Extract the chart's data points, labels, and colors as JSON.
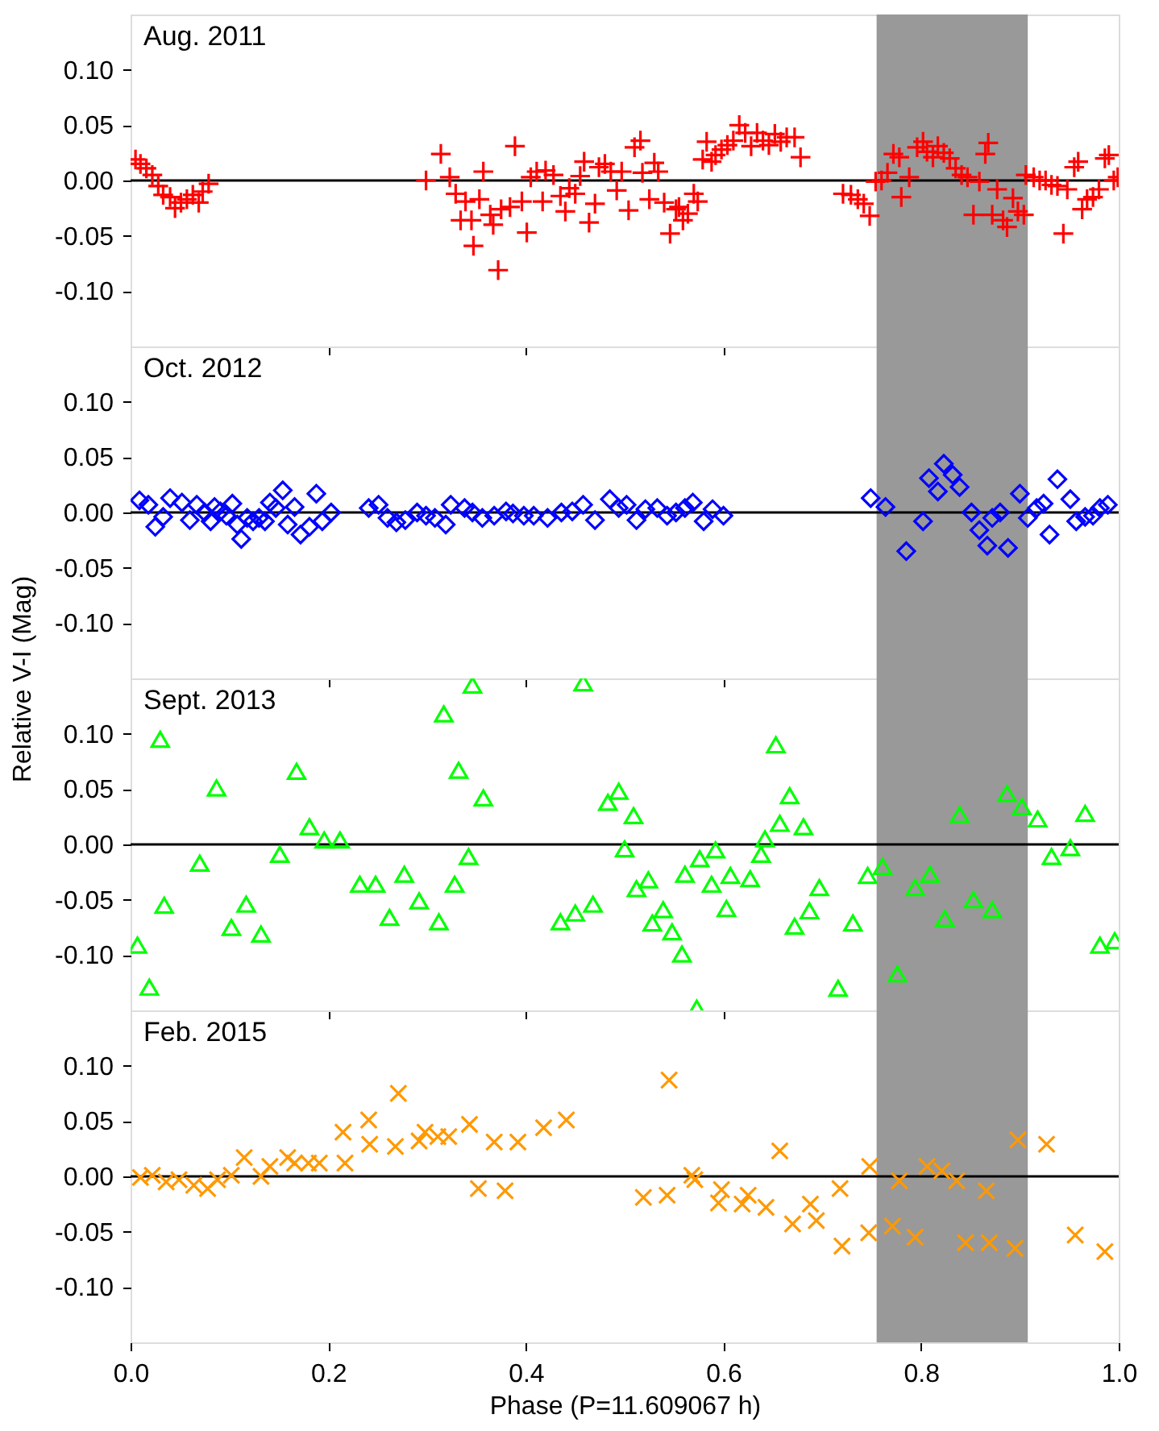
{
  "chart_data": [
    {
      "type": "scatter",
      "title": "Aug.  2011",
      "marker": "cross",
      "tick_labels": "y",
      "grid": false,
      "xlim": [
        0,
        1
      ],
      "xticks": [
        0.0,
        0.2,
        0.4,
        0.6,
        0.8,
        1.0
      ],
      "ylim": [
        -0.15,
        0.15
      ],
      "yticks": [
        {
          "value": -0.1,
          "label": "-0.10"
        },
        {
          "value": -0.05,
          "label": "-0.05"
        },
        {
          "value": 0,
          "label": "0.00"
        },
        {
          "value": 0.05,
          "label": "0.05"
        },
        {
          "value": 0.1,
          "label": "0.10"
        }
      ],
      "bands": [
        {
          "axis": "x",
          "from": 0.755,
          "to": 0.908,
          "color": "#999999"
        }
      ],
      "ref_lines": [
        {
          "axis": "y",
          "value": 0,
          "color": "#000000"
        }
      ],
      "series": [
        {
          "color": "#ff0000",
          "x": [
            0.005,
            0.01,
            0.016,
            0.022,
            0.028,
            0.033,
            0.04,
            0.045,
            0.051,
            0.057,
            0.063,
            0.069,
            0.073,
            0.079,
            0.299,
            0.314,
            0.323,
            0.329,
            0.334,
            0.339,
            0.345,
            0.347,
            0.353,
            0.357,
            0.364,
            0.367,
            0.372,
            0.375,
            0.384,
            0.389,
            0.396,
            0.401,
            0.405,
            0.411,
            0.417,
            0.42,
            0.428,
            0.435,
            0.44,
            0.444,
            0.45,
            0.455,
            0.459,
            0.464,
            0.47,
            0.474,
            0.48,
            0.486,
            0.492,
            0.497,
            0.504,
            0.51,
            0.516,
            0.518,
            0.525,
            0.53,
            0.534,
            0.54,
            0.546,
            0.552,
            0.555,
            0.559,
            0.564,
            0.57,
            0.574,
            0.579,
            0.583,
            0.588,
            0.592,
            0.598,
            0.604,
            0.61,
            0.616,
            0.622,
            0.628,
            0.634,
            0.64,
            0.646,
            0.652,
            0.658,
            0.664,
            0.672,
            0.678,
            0.721,
            0.729,
            0.736,
            0.742,
            0.748,
            0.754,
            0.76,
            0.766,
            0.772,
            0.778,
            0.78,
            0.788,
            0.796,
            0.802,
            0.806,
            0.812,
            0.817,
            0.823,
            0.829,
            0.835,
            0.841,
            0.847,
            0.853,
            0.859,
            0.865,
            0.868,
            0.872,
            0.877,
            0.883,
            0.887,
            0.893,
            0.898,
            0.904,
            0.906,
            0.914,
            0.92,
            0.926,
            0.932,
            0.938,
            0.944,
            0.948,
            0.955,
            0.959,
            0.963,
            0.968,
            0.974,
            0.98,
            0.986,
            0.99,
            0.995,
            0.999
          ],
          "values": [
            0.019,
            0.015,
            0.011,
            0.005,
            -0.005,
            -0.013,
            -0.015,
            -0.025,
            -0.02,
            -0.017,
            -0.013,
            -0.02,
            -0.01,
            -0.003,
            0.0,
            0.024,
            0.003,
            -0.012,
            -0.036,
            -0.019,
            -0.036,
            -0.059,
            -0.017,
            0.008,
            -0.031,
            -0.04,
            -0.081,
            -0.026,
            -0.024,
            0.031,
            -0.019,
            -0.047,
            0.003,
            0.008,
            -0.019,
            0.009,
            0.005,
            -0.014,
            -0.028,
            -0.007,
            -0.012,
            0.004,
            0.017,
            -0.038,
            -0.021,
            0.012,
            0.015,
            0.008,
            -0.009,
            0.008,
            -0.027,
            0.03,
            0.036,
            0.007,
            -0.017,
            0.016,
            0.008,
            -0.02,
            -0.048,
            -0.026,
            -0.024,
            -0.036,
            -0.03,
            -0.012,
            -0.019,
            0.019,
            0.035,
            0.017,
            0.023,
            0.028,
            0.032,
            0.036,
            0.05,
            0.043,
            0.031,
            0.043,
            0.036,
            0.032,
            0.042,
            0.035,
            0.039,
            0.039,
            0.021,
            -0.012,
            -0.013,
            -0.017,
            -0.021,
            -0.032,
            -0.001,
            0.0,
            0.007,
            0.024,
            0.021,
            -0.015,
            0.003,
            0.03,
            0.035,
            0.026,
            0.021,
            0.031,
            0.025,
            0.02,
            0.011,
            0.005,
            0.003,
            -0.031,
            -0.001,
            0.024,
            0.034,
            -0.031,
            -0.008,
            -0.036,
            -0.042,
            -0.016,
            -0.028,
            -0.031,
            0.005,
            0.003,
            0.0,
            0.0,
            -0.004,
            -0.005,
            -0.048,
            -0.008,
            0.012,
            0.017,
            -0.026,
            -0.017,
            -0.015,
            -0.008,
            0.02,
            0.023,
            0.0,
            0.003
          ]
        }
      ]
    },
    {
      "type": "scatter",
      "title": "Oct.  2012",
      "marker": "diamond",
      "tick_labels": "y",
      "grid": false,
      "ylabel": "Relative V-I (Mag)",
      "xlim": [
        0,
        1
      ],
      "xticks": [
        0.0,
        0.2,
        0.4,
        0.6,
        0.8,
        1.0
      ],
      "ylim": [
        -0.15,
        0.15
      ],
      "yticks": [
        {
          "value": -0.1,
          "label": "-0.10"
        },
        {
          "value": -0.05,
          "label": "-0.05"
        },
        {
          "value": 0,
          "label": "0.00"
        },
        {
          "value": 0.05,
          "label": "0.05"
        },
        {
          "value": 0.1,
          "label": "0.10"
        }
      ],
      "bands": [
        {
          "axis": "x",
          "from": 0.755,
          "to": 0.908,
          "color": "#999999"
        }
      ],
      "ref_lines": [
        {
          "axis": "y",
          "value": 0,
          "color": "#000000"
        }
      ],
      "series": [
        {
          "color": "#0000ff",
          "x": [
            0.009,
            0.018,
            0.025,
            0.033,
            0.04,
            0.052,
            0.06,
            0.067,
            0.075,
            0.081,
            0.085,
            0.091,
            0.097,
            0.103,
            0.108,
            0.112,
            0.118,
            0.124,
            0.13,
            0.136,
            0.141,
            0.147,
            0.154,
            0.159,
            0.166,
            0.172,
            0.181,
            0.188,
            0.194,
            0.203,
            0.241,
            0.251,
            0.26,
            0.269,
            0.278,
            0.29,
            0.299,
            0.308,
            0.319,
            0.324,
            0.338,
            0.346,
            0.356,
            0.368,
            0.38,
            0.387,
            0.398,
            0.408,
            0.422,
            0.436,
            0.447,
            0.458,
            0.47,
            0.485,
            0.494,
            0.502,
            0.512,
            0.521,
            0.533,
            0.543,
            0.552,
            0.561,
            0.569,
            0.58,
            0.589,
            0.6,
            0.749,
            0.764,
            0.785,
            0.802,
            0.808,
            0.817,
            0.823,
            0.832,
            0.839,
            0.851,
            0.859,
            0.867,
            0.872,
            0.88,
            0.888,
            0.9,
            0.908,
            0.917,
            0.924,
            0.93,
            0.938,
            0.951,
            0.957,
            0.966,
            0.974,
            0.981,
            0.989
          ],
          "values": [
            0.011,
            0.007,
            -0.013,
            -0.004,
            0.013,
            0.009,
            -0.007,
            0.007,
            0.0,
            -0.008,
            0.005,
            0.001,
            -0.003,
            0.008,
            -0.011,
            -0.024,
            -0.005,
            -0.008,
            -0.005,
            -0.008,
            0.009,
            0.004,
            0.02,
            -0.011,
            0.005,
            -0.02,
            -0.013,
            0.017,
            -0.008,
            0.0,
            0.004,
            0.007,
            -0.005,
            -0.009,
            -0.007,
            0.0,
            -0.003,
            -0.005,
            -0.011,
            0.007,
            0.004,
            0.0,
            -0.005,
            -0.003,
            0.001,
            -0.001,
            -0.003,
            -0.003,
            -0.005,
            0.0,
            0.001,
            0.007,
            -0.007,
            0.012,
            0.004,
            0.007,
            -0.007,
            0.003,
            0.004,
            -0.003,
            0.0,
            0.004,
            0.009,
            -0.008,
            0.003,
            -0.003,
            0.013,
            0.005,
            -0.035,
            -0.008,
            0.031,
            0.019,
            0.044,
            0.034,
            0.023,
            0.0,
            -0.016,
            -0.03,
            -0.005,
            0.0,
            -0.032,
            0.017,
            -0.005,
            0.004,
            0.008,
            -0.02,
            0.03,
            0.012,
            -0.008,
            -0.004,
            -0.003,
            0.004,
            0.007
          ]
        }
      ]
    },
    {
      "type": "scatter",
      "title": "Sept. 2013",
      "marker": "triangle",
      "tick_labels": "y",
      "grid": false,
      "xlim": [
        0,
        1
      ],
      "xticks": [
        0.0,
        0.2,
        0.4,
        0.6,
        0.8,
        1.0
      ],
      "ylim": [
        -0.15,
        0.15
      ],
      "yticks": [
        {
          "value": -0.1,
          "label": "-0.10"
        },
        {
          "value": -0.05,
          "label": "-0.05"
        },
        {
          "value": 0,
          "label": "0.00"
        },
        {
          "value": 0.05,
          "label": "0.05"
        },
        {
          "value": 0.1,
          "label": "0.10"
        }
      ],
      "bands": [
        {
          "axis": "x",
          "from": 0.755,
          "to": 0.908,
          "color": "#999999"
        }
      ],
      "ref_lines": [
        {
          "axis": "y",
          "value": 0,
          "color": "#000000"
        }
      ],
      "series": [
        {
          "color": "#00ff00",
          "x": [
            0.007,
            0.019,
            0.03,
            0.034,
            0.07,
            0.087,
            0.102,
            0.117,
            0.132,
            0.151,
            0.168,
            0.181,
            0.196,
            0.212,
            0.232,
            0.248,
            0.262,
            0.277,
            0.292,
            0.312,
            0.317,
            0.328,
            0.332,
            0.342,
            0.346,
            0.357,
            0.435,
            0.45,
            0.458,
            0.468,
            0.483,
            0.494,
            0.5,
            0.509,
            0.512,
            0.524,
            0.528,
            0.539,
            0.548,
            0.558,
            0.561,
            0.573,
            0.576,
            0.588,
            0.592,
            0.603,
            0.607,
            0.627,
            0.638,
            0.642,
            0.653,
            0.657,
            0.667,
            0.672,
            0.681,
            0.687,
            0.697,
            0.716,
            0.731,
            0.746,
            0.761,
            0.776,
            0.794,
            0.809,
            0.824,
            0.839,
            0.853,
            0.872,
            0.887,
            0.902,
            0.918,
            0.932,
            0.951,
            0.966,
            0.981,
            0.996
          ],
          "values": [
            -0.091,
            -0.129,
            0.095,
            -0.055,
            -0.017,
            0.051,
            -0.075,
            -0.054,
            -0.081,
            -0.009,
            0.066,
            0.016,
            0.004,
            0.004,
            -0.036,
            -0.036,
            -0.066,
            -0.027,
            -0.051,
            -0.07,
            0.118,
            -0.036,
            0.067,
            -0.011,
            0.144,
            0.042,
            -0.07,
            -0.062,
            0.146,
            -0.054,
            0.038,
            0.048,
            -0.004,
            0.026,
            -0.04,
            -0.032,
            -0.071,
            -0.059,
            -0.079,
            -0.099,
            -0.027,
            -0.148,
            -0.013,
            -0.036,
            -0.005,
            -0.058,
            -0.028,
            -0.031,
            -0.009,
            0.005,
            0.09,
            0.019,
            0.044,
            -0.074,
            0.016,
            -0.06,
            -0.039,
            -0.13,
            -0.071,
            -0.028,
            -0.02,
            -0.117,
            -0.039,
            -0.027,
            -0.067,
            0.027,
            -0.05,
            -0.059,
            0.046,
            0.034,
            0.023,
            -0.011,
            -0.003,
            0.028,
            -0.091,
            -0.087
          ]
        }
      ]
    },
    {
      "type": "scatter",
      "title": "Feb.  2015",
      "marker": "x",
      "grid": false,
      "xlabel": "Phase (P=11.609067 h)",
      "xlim": [
        0,
        1
      ],
      "xticks": [
        {
          "value": 0,
          "label": "0.0"
        },
        0.2,
        0.4,
        0.6,
        0.8,
        {
          "value": 1,
          "label": "1.0"
        }
      ],
      "ylim": [
        -0.15,
        0.15
      ],
      "yticks": [
        {
          "value": -0.1,
          "label": "-0.10"
        },
        {
          "value": -0.05,
          "label": "-0.05"
        },
        {
          "value": 0,
          "label": "0.00"
        },
        {
          "value": 0.05,
          "label": "0.05"
        },
        {
          "value": 0.1,
          "label": "0.10"
        }
      ],
      "bands": [
        {
          "axis": "x",
          "from": 0.755,
          "to": 0.908,
          "color": "#999999"
        }
      ],
      "ref_lines": [
        {
          "axis": "y",
          "value": 0,
          "color": "#000000"
        }
      ],
      "series": [
        {
          "color": "#ff9900",
          "x": [
            0.01,
            0.022,
            0.036,
            0.049,
            0.064,
            0.078,
            0.088,
            0.102,
            0.115,
            0.132,
            0.141,
            0.159,
            0.166,
            0.18,
            0.191,
            0.215,
            0.217,
            0.241,
            0.242,
            0.268,
            0.271,
            0.292,
            0.298,
            0.311,
            0.322,
            0.343,
            0.352,
            0.368,
            0.379,
            0.392,
            0.418,
            0.441,
            0.519,
            0.543,
            0.545,
            0.568,
            0.571,
            0.595,
            0.598,
            0.619,
            0.625,
            0.643,
            0.657,
            0.67,
            0.688,
            0.694,
            0.718,
            0.72,
            0.747,
            0.748,
            0.771,
            0.778,
            0.794,
            0.806,
            0.821,
            0.836,
            0.845,
            0.866,
            0.869,
            0.895,
            0.898,
            0.927,
            0.956,
            0.986
          ],
          "values": [
            -0.001,
            0.001,
            -0.005,
            -0.003,
            -0.008,
            -0.011,
            -0.003,
            0.001,
            0.017,
            0.0,
            0.009,
            0.017,
            0.012,
            0.012,
            0.012,
            0.04,
            0.012,
            0.051,
            0.029,
            0.027,
            0.075,
            0.032,
            0.04,
            0.036,
            0.036,
            0.047,
            -0.011,
            0.031,
            -0.013,
            0.031,
            0.044,
            0.051,
            -0.019,
            -0.017,
            0.087,
            0.001,
            -0.003,
            -0.024,
            -0.012,
            -0.025,
            -0.017,
            -0.028,
            0.023,
            -0.043,
            -0.025,
            -0.04,
            -0.011,
            -0.063,
            -0.051,
            0.009,
            -0.045,
            -0.004,
            -0.055,
            0.009,
            0.005,
            -0.004,
            -0.06,
            -0.013,
            -0.06,
            -0.065,
            0.033,
            0.029,
            -0.053,
            -0.068
          ]
        }
      ]
    }
  ]
}
